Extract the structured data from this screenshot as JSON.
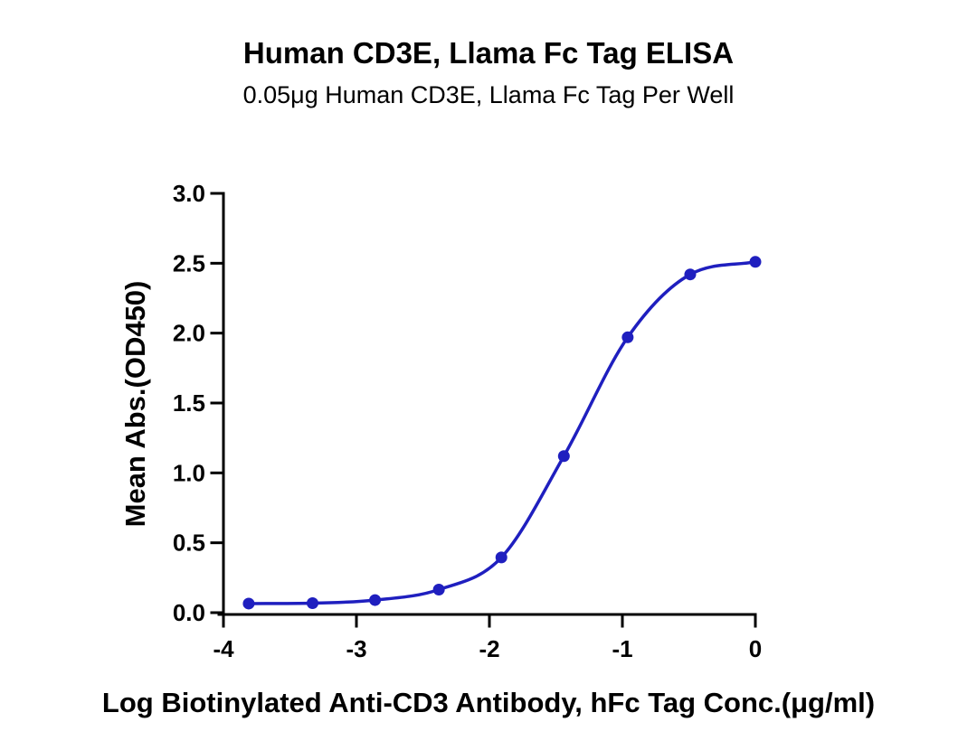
{
  "chart_data": {
    "type": "line",
    "title": "Human CD3E, Llama Fc Tag ELISA",
    "subtitle": "0.05μg Human CD3E, Llama Fc Tag Per Well",
    "xlabel": "Log Biotinylated Anti-CD3 Antibody, hFc Tag Conc.(μg/ml)",
    "ylabel": "Mean Abs.(OD450)",
    "xlim": [
      -4,
      0
    ],
    "ylim": [
      0,
      3.0
    ],
    "xticks": [
      -4,
      -3,
      -2,
      -1,
      0
    ],
    "xtick_labels": [
      "-4",
      "-3",
      "-2",
      "-1",
      "0"
    ],
    "yticks": [
      0,
      0.5,
      1.0,
      1.5,
      2.0,
      2.5,
      3.0
    ],
    "ytick_labels": [
      "0.0",
      "0.5",
      "1.0",
      "1.5",
      "2.0",
      "2.5",
      "3.0"
    ],
    "grid": false,
    "series": [
      {
        "x": [
          -3.81,
          -3.33,
          -2.86,
          -2.38,
          -1.91,
          -1.44,
          -0.96,
          -0.49,
          0.0
        ],
        "y": [
          0.065,
          0.068,
          0.09,
          0.165,
          0.395,
          1.12,
          1.97,
          2.42,
          2.51
        ],
        "color": "#1f1fbf",
        "fit": "4PL sigmoid"
      }
    ]
  }
}
